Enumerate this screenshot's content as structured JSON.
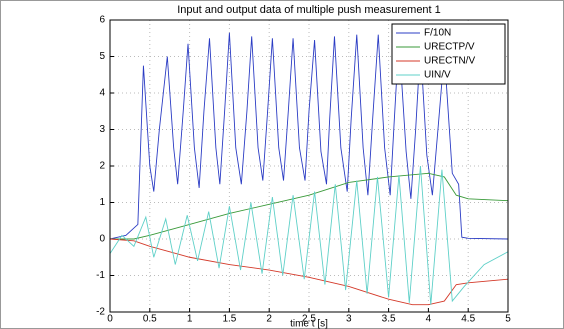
{
  "chart_data": {
    "type": "line",
    "title": "Input and output data of multiple push measurement 1",
    "xlabel": "time t [s]",
    "xlim": [
      0,
      5
    ],
    "xticks": [
      0,
      0.5,
      1,
      1.5,
      2,
      2.5,
      3,
      3.5,
      4,
      4.5,
      5
    ],
    "ylim": [
      -2,
      6
    ],
    "yticks": [
      -2,
      -1,
      0,
      1,
      2,
      3,
      4,
      5,
      6
    ],
    "grid": true,
    "legend": "top-right",
    "series": [
      {
        "name": "F/10N",
        "color": "#2b3cc4",
        "x": [
          0,
          0.1,
          0.2,
          0.3,
          0.35,
          0.42,
          0.5,
          0.55,
          0.62,
          0.72,
          0.8,
          0.85,
          0.92,
          0.98,
          1.06,
          1.12,
          1.18,
          1.25,
          1.33,
          1.38,
          1.44,
          1.5,
          1.58,
          1.65,
          1.72,
          1.78,
          1.86,
          1.92,
          1.98,
          2.04,
          2.12,
          2.18,
          2.24,
          2.3,
          2.38,
          2.45,
          2.5,
          2.57,
          2.65,
          2.72,
          2.76,
          2.82,
          2.9,
          2.98,
          3.03,
          3.1,
          3.18,
          3.24,
          3.3,
          3.37,
          3.45,
          3.52,
          3.57,
          3.63,
          3.72,
          3.78,
          3.84,
          3.9,
          3.98,
          4.05,
          4.12,
          4.2,
          4.3,
          4.38,
          4.42,
          4.5,
          5
        ],
        "values": [
          0,
          0.05,
          0.1,
          0.3,
          0.4,
          4.75,
          2.0,
          1.3,
          3.0,
          5.0,
          2.5,
          1.5,
          3.5,
          5.35,
          2.5,
          1.4,
          3.5,
          5.5,
          2.5,
          1.5,
          3.5,
          5.65,
          2.5,
          1.5,
          3.5,
          5.55,
          2.5,
          1.6,
          3.5,
          5.5,
          2.5,
          1.6,
          3.5,
          5.5,
          2.5,
          1.6,
          3.5,
          5.45,
          2.4,
          1.5,
          3.3,
          5.55,
          2.5,
          1.3,
          3.3,
          5.6,
          2.5,
          1.2,
          3.3,
          5.6,
          2.5,
          1.2,
          3.2,
          5.5,
          2.4,
          1.1,
          3.0,
          5.3,
          2.3,
          1.2,
          3.0,
          5.1,
          1.8,
          1.5,
          0.05,
          0.02,
          0
        ]
      },
      {
        "name": "URECTP/V",
        "color": "#3a9a3a",
        "x": [
          0,
          0.3,
          0.5,
          1,
          1.5,
          2,
          2.5,
          3,
          3.5,
          4,
          4.2,
          4.35,
          4.5,
          5
        ],
        "values": [
          0,
          0,
          0.1,
          0.4,
          0.7,
          0.95,
          1.2,
          1.55,
          1.7,
          1.8,
          1.7,
          1.2,
          1.1,
          1.05
        ]
      },
      {
        "name": "URECTN/V",
        "color": "#d43a2a",
        "x": [
          0,
          0.3,
          0.5,
          1,
          1.5,
          2,
          2.5,
          3,
          3.5,
          3.8,
          4,
          4.2,
          4.35,
          4.5,
          5
        ],
        "values": [
          0,
          -0.05,
          -0.2,
          -0.5,
          -0.7,
          -0.85,
          -1.05,
          -1.3,
          -1.65,
          -1.8,
          -1.8,
          -1.7,
          -1.25,
          -1.2,
          -1.1
        ]
      },
      {
        "name": "UIN/V",
        "color": "#5fd0c8",
        "x": [
          0,
          0.15,
          0.3,
          0.45,
          0.55,
          0.7,
          0.82,
          0.97,
          1.1,
          1.24,
          1.37,
          1.5,
          1.64,
          1.77,
          1.91,
          2.04,
          2.17,
          2.3,
          2.44,
          2.57,
          2.7,
          2.83,
          2.96,
          3.1,
          3.23,
          3.36,
          3.5,
          3.63,
          3.76,
          3.9,
          4.03,
          4.17,
          4.3,
          4.45,
          4.7,
          5
        ],
        "values": [
          -0.4,
          0.1,
          -0.2,
          0.6,
          -0.5,
          0.55,
          -0.7,
          0.65,
          -0.6,
          0.75,
          -0.8,
          0.9,
          -0.85,
          1.0,
          -0.95,
          1.15,
          -1.0,
          1.2,
          -1.1,
          1.3,
          -1.25,
          1.5,
          -1.4,
          1.6,
          -1.5,
          1.7,
          -1.6,
          1.75,
          -1.75,
          2.0,
          -1.8,
          1.9,
          -1.7,
          -1.3,
          -0.7,
          -0.35
        ]
      }
    ]
  }
}
